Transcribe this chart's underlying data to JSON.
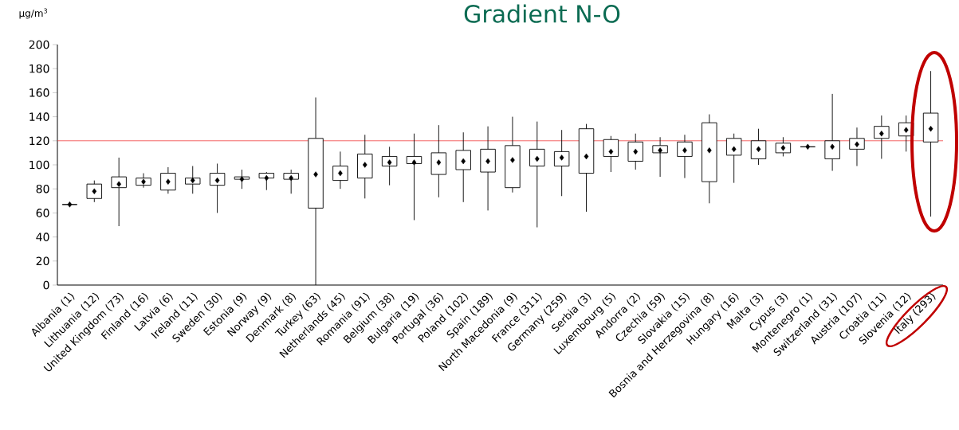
{
  "chart_data": {
    "type": "box",
    "title": "Gradient N-O",
    "ylabel": "µg/m$^{3}$",
    "categories": [
      "Albania (1)",
      "Lithuania (12)",
      "United Kingdom (73)",
      "Finland (16)",
      "Latvia (6)",
      "Ireland (11)",
      "Sweden (30)",
      "Estonia (9)",
      "Norway (9)",
      "Denmark (8)",
      "Turkey (63)",
      "Netherlands (45)",
      "Romania (91)",
      "Belgium (38)",
      "Bulgaria (19)",
      "Portugal (36)",
      "Poland (102)",
      "Spain (189)",
      "North Macedonia (9)",
      "France (311)",
      "Germany (259)",
      "Serbia (3)",
      "Luxembourg (5)",
      "Andorra (2)",
      "Czechia (59)",
      "Slovakia (15)",
      "Bosnia and Herzegovina (8)",
      "Hungary (16)",
      "Malta (3)",
      "Cypus (3)",
      "Montenegro (1)",
      "Switzerland (31)",
      "Austria (107)",
      "Croatia (11)",
      "Slovenia (12)",
      "Italy (293)"
    ],
    "boxes": [
      {
        "low": 66,
        "q1": 67,
        "q3": 67,
        "high": 68,
        "mean": 67
      },
      {
        "low": 69,
        "q1": 72,
        "q3": 84,
        "high": 87,
        "mean": 78
      },
      {
        "low": 49,
        "q1": 81,
        "q3": 90,
        "high": 106,
        "mean": 84
      },
      {
        "low": 81,
        "q1": 83,
        "q3": 89,
        "high": 93,
        "mean": 86
      },
      {
        "low": 76,
        "q1": 79,
        "q3": 93,
        "high": 98,
        "mean": 86
      },
      {
        "low": 76,
        "q1": 84,
        "q3": 89,
        "high": 99,
        "mean": 87
      },
      {
        "low": 60,
        "q1": 83,
        "q3": 93,
        "high": 101,
        "mean": 87
      },
      {
        "low": 80,
        "q1": 88,
        "q3": 90,
        "high": 96,
        "mean": 88
      },
      {
        "low": 79,
        "q1": 89,
        "q3": 93,
        "high": 94,
        "mean": 89
      },
      {
        "low": 76,
        "q1": 88,
        "q3": 93,
        "high": 96,
        "mean": 89
      },
      {
        "low": 0,
        "q1": 64,
        "q3": 122,
        "high": 156,
        "mean": 92
      },
      {
        "low": 80,
        "q1": 87,
        "q3": 99,
        "high": 111,
        "mean": 93
      },
      {
        "low": 72,
        "q1": 89,
        "q3": 109,
        "high": 125,
        "mean": 100
      },
      {
        "low": 83,
        "q1": 99,
        "q3": 107,
        "high": 115,
        "mean": 102
      },
      {
        "low": 54,
        "q1": 101,
        "q3": 107,
        "high": 126,
        "mean": 102
      },
      {
        "low": 73,
        "q1": 92,
        "q3": 110,
        "high": 133,
        "mean": 102
      },
      {
        "low": 69,
        "q1": 96,
        "q3": 112,
        "high": 127,
        "mean": 103
      },
      {
        "low": 62,
        "q1": 94,
        "q3": 113,
        "high": 132,
        "mean": 103
      },
      {
        "low": 77,
        "q1": 81,
        "q3": 116,
        "high": 140,
        "mean": 104
      },
      {
        "low": 48,
        "q1": 99,
        "q3": 113,
        "high": 136,
        "mean": 105
      },
      {
        "low": 74,
        "q1": 99,
        "q3": 111,
        "high": 129,
        "mean": 106
      },
      {
        "low": 61,
        "q1": 93,
        "q3": 130,
        "high": 134,
        "mean": 107
      },
      {
        "low": 94,
        "q1": 107,
        "q3": 121,
        "high": 124,
        "mean": 111
      },
      {
        "low": 96,
        "q1": 103,
        "q3": 119,
        "high": 126,
        "mean": 111
      },
      {
        "low": 90,
        "q1": 110,
        "q3": 116,
        "high": 123,
        "mean": 112
      },
      {
        "low": 89,
        "q1": 107,
        "q3": 119,
        "high": 125,
        "mean": 112
      },
      {
        "low": 68,
        "q1": 86,
        "q3": 135,
        "high": 142,
        "mean": 112
      },
      {
        "low": 85,
        "q1": 108,
        "q3": 122,
        "high": 126,
        "mean": 113
      },
      {
        "low": 100,
        "q1": 105,
        "q3": 120,
        "high": 130,
        "mean": 113
      },
      {
        "low": 107,
        "q1": 110,
        "q3": 118,
        "high": 123,
        "mean": 114
      },
      {
        "low": 115,
        "q1": 115,
        "q3": 115,
        "high": 115,
        "mean": 115
      },
      {
        "low": 95,
        "q1": 105,
        "q3": 120,
        "high": 159,
        "mean": 115
      },
      {
        "low": 99,
        "q1": 113,
        "q3": 122,
        "high": 131,
        "mean": 117
      },
      {
        "low": 105,
        "q1": 122,
        "q3": 132,
        "high": 141,
        "mean": 126
      },
      {
        "low": 111,
        "q1": 124,
        "q3": 135,
        "high": 141,
        "mean": 129
      },
      {
        "low": 57,
        "q1": 119,
        "q3": 143,
        "high": 178,
        "mean": 130
      }
    ],
    "ylim": [
      0,
      200
    ],
    "yticks": [
      0,
      20,
      40,
      60,
      80,
      100,
      120,
      140,
      160,
      180,
      200
    ],
    "ref_lines": [
      {
        "axis": "y",
        "value": 120,
        "color": "#f03c3c"
      }
    ]
  }
}
